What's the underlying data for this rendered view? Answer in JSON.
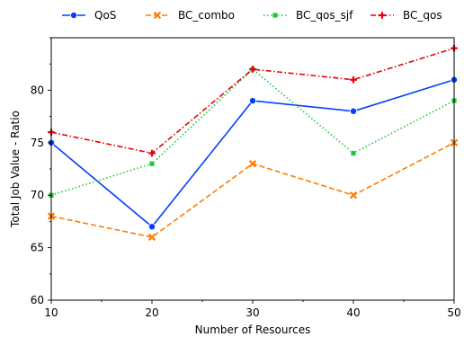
{
  "chart_data": {
    "type": "line",
    "xlabel": "Number of Resources",
    "ylabel": "Total Job Value - Ratio",
    "x": [
      10,
      20,
      30,
      40,
      50
    ],
    "xlim": [
      10,
      50
    ],
    "ylim": [
      60,
      85
    ],
    "xticks": [
      10,
      20,
      30,
      40,
      50
    ],
    "yticks": [
      60,
      65,
      70,
      75,
      80
    ],
    "grid": false,
    "legend_position": "top",
    "series": [
      {
        "name": "QoS",
        "values": [
          75,
          67,
          79,
          78,
          81
        ],
        "color": "#023eff",
        "dash": "solid",
        "marker": "circle"
      },
      {
        "name": "BC_combo",
        "values": [
          68,
          66,
          73,
          70,
          75
        ],
        "color": "#ff7c00",
        "dash": "dashed",
        "marker": "x"
      },
      {
        "name": "BC_qos_sjf",
        "values": [
          70,
          73,
          82,
          74,
          79
        ],
        "color": "#1ac938",
        "dash": "dotted",
        "marker": "square"
      },
      {
        "name": "BC_qos",
        "values": [
          76,
          74,
          82,
          81,
          84
        ],
        "color": "#e8000b",
        "dash": "dashdot",
        "marker": "plus"
      }
    ]
  }
}
